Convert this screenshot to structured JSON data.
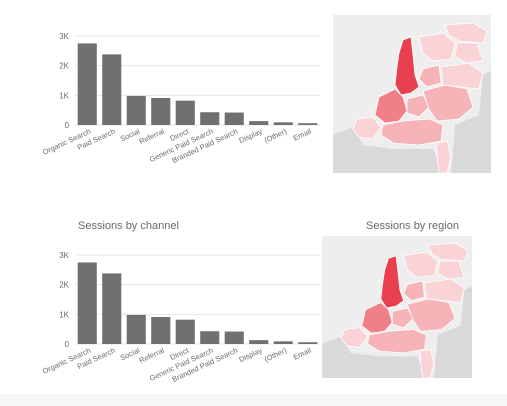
{
  "panels": {
    "channel_title_bottom": "Sessions by channel",
    "region_title_bottom": "Sessions by region"
  },
  "colors": {
    "bar": "#707070",
    "grid": "#e6e6e6",
    "axis_text": "#6b6b6b",
    "map_land_other": "#d9d9d9",
    "map_sea": "#eeeeee",
    "region_dark": "#e8404e",
    "region_mid": "#f07f88",
    "region_light": "#f6b3b8",
    "region_pale": "#fad3d6"
  },
  "chart_data": [
    {
      "type": "bar",
      "title": "",
      "xlabel": "",
      "ylabel": "",
      "categories": [
        "Organic Search",
        "Paid Search",
        "Social",
        "Referral",
        "Direct",
        "Generic Paid Search",
        "Branded Paid Search",
        "Display",
        "(Other)",
        "Email"
      ],
      "values": [
        2750,
        2380,
        980,
        910,
        820,
        430,
        420,
        130,
        90,
        60
      ],
      "ylim": [
        0,
        3000
      ],
      "yticks": [
        "0",
        "1K",
        "2K",
        "3K"
      ],
      "grid": true
    },
    {
      "type": "bar",
      "title": "Sessions by channel",
      "xlabel": "",
      "ylabel": "",
      "categories": [
        "Organic Search",
        "Paid Search",
        "Social",
        "Referral",
        "Direct",
        "Generic Paid Search",
        "Branded Paid Search",
        "Display",
        "(Other)",
        "Email"
      ],
      "values": [
        2750,
        2380,
        980,
        910,
        820,
        430,
        420,
        130,
        90,
        60
      ],
      "ylim": [
        0,
        3000
      ],
      "yticks": [
        "0",
        "1K",
        "2K",
        "3K"
      ],
      "grid": true
    }
  ],
  "map_data": [
    {
      "title": "",
      "regions": [
        "North Holland",
        "South Holland",
        "Utrecht",
        "Zeeland",
        "North Brabant",
        "Limburg",
        "Gelderland",
        "Overijssel",
        "Flevoland",
        "Drenthe",
        "Friesland",
        "Groningen"
      ]
    },
    {
      "title": "Sessions by region",
      "regions": [
        "North Holland",
        "South Holland",
        "Utrecht",
        "Zeeland",
        "North Brabant",
        "Limburg",
        "Gelderland",
        "Overijssel",
        "Flevoland",
        "Drenthe",
        "Friesland",
        "Groningen"
      ]
    }
  ]
}
